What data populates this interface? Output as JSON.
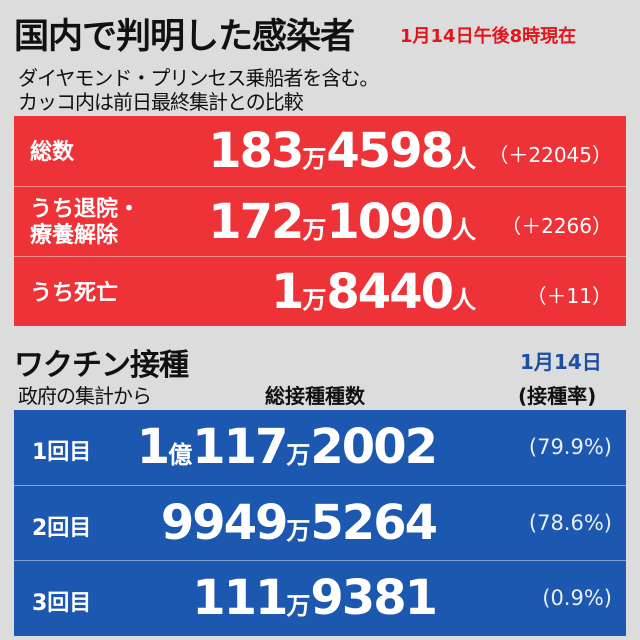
{
  "header": {
    "title": "国内で判明した感染者",
    "timestamp": "1月14日午後8時現在",
    "note1": "ダイヤモンド・プリンセス乗船者を含む。",
    "note2": "カッコ内は前日最終集計との比較"
  },
  "cases": [
    {
      "label": "総数",
      "value_parts": [
        "183",
        "万",
        "4598",
        "人"
      ],
      "diff": "（＋22045）"
    },
    {
      "label_line1": "うち退院・",
      "label_line2": "療養解除",
      "value_parts": [
        "172",
        "万",
        "1090",
        "人"
      ],
      "diff": "（＋2266）"
    },
    {
      "label": "うち死亡",
      "value_parts": [
        "1",
        "万",
        "8440",
        "人"
      ],
      "diff": "（＋11）"
    }
  ],
  "vaccine": {
    "title": "ワクチン接種",
    "date": "1月14日",
    "source": "政府の集計から",
    "col_total": "総接種種数",
    "col_rate": "(接種率)",
    "rows": [
      {
        "label": "1回目",
        "value_parts": [
          "1",
          "億",
          "117",
          "万",
          "2002"
        ],
        "rate": "(79.9%)"
      },
      {
        "label": "2回目",
        "value_parts": [
          "9949",
          "万",
          "5264"
        ],
        "rate": "(78.6%)"
      },
      {
        "label": "3回目",
        "value_parts": [
          "111",
          "万",
          "9381"
        ],
        "rate": "(0.9%)"
      }
    ]
  }
}
